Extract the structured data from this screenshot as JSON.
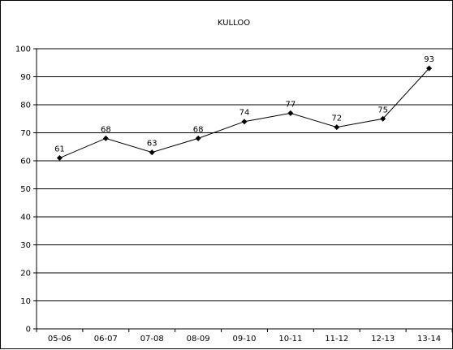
{
  "chart_data": {
    "type": "line",
    "title": "KULLOO",
    "xlabel": "",
    "ylabel": "",
    "categories": [
      "05-06",
      "06-07",
      "07-08",
      "08-09",
      "09-10",
      "10-11",
      "11-12",
      "12-13",
      "13-14"
    ],
    "series": [
      {
        "values": [
          61,
          68,
          63,
          68,
          74,
          77,
          72,
          75,
          93
        ],
        "color": "#000000",
        "marker": "diamond"
      }
    ],
    "ylim": [
      0,
      100
    ],
    "yticks": [
      "0",
      "10",
      "20",
      "30",
      "40",
      "50",
      "60",
      "70",
      "80",
      "90",
      "100"
    ],
    "grid": true,
    "legend": "none"
  }
}
